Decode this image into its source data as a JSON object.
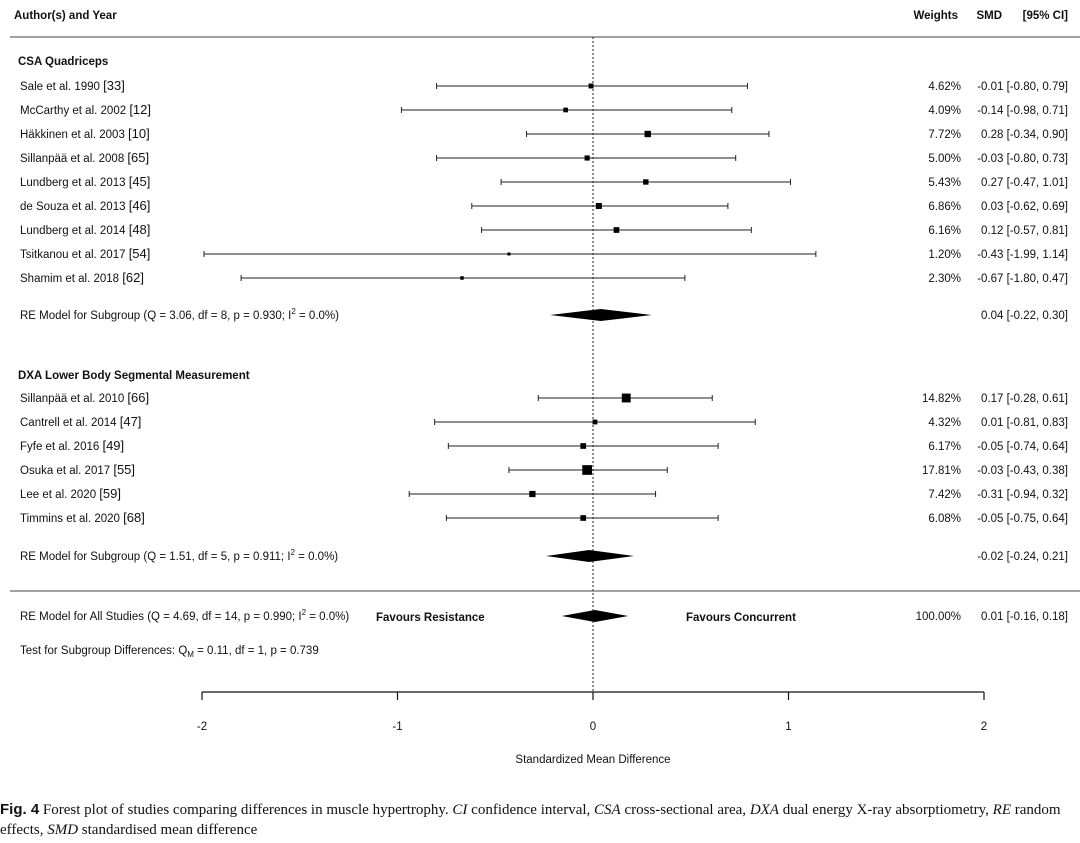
{
  "chart_data": {
    "type": "forest",
    "header": {
      "study": "Author(s) and Year",
      "weights": "Weights",
      "smd": "SMD",
      "ci": "[95% CI]"
    },
    "xlim": [
      -2,
      2
    ],
    "xticks": [
      "-2",
      "-1",
      "0",
      "1",
      "2"
    ],
    "xlabel": "Standardized Mean Difference",
    "favours_left": "Favours Resistance",
    "favours_right": "Favours Concurrent",
    "subgroups": [
      {
        "title": "CSA Quadriceps",
        "studies": [
          {
            "name": "Sale et al. 1990",
            "ref": "[33]",
            "smd": -0.01,
            "lo": -0.8,
            "hi": 0.79,
            "weight": "4.62%",
            "ci_text": "-0.01 [-0.80, 0.79]"
          },
          {
            "name": "McCarthy et al. 2002",
            "ref": "[12]",
            "smd": -0.14,
            "lo": -0.98,
            "hi": 0.71,
            "weight": "4.09%",
            "ci_text": "-0.14 [-0.98, 0.71]"
          },
          {
            "name": "Häkkinen et al. 2003",
            "ref": "[10]",
            "smd": 0.28,
            "lo": -0.34,
            "hi": 0.9,
            "weight": "7.72%",
            "ci_text": "0.28 [-0.34, 0.90]"
          },
          {
            "name": "Sillanpää et al. 2008",
            "ref": "[65]",
            "smd": -0.03,
            "lo": -0.8,
            "hi": 0.73,
            "weight": "5.00%",
            "ci_text": "-0.03 [-0.80, 0.73]"
          },
          {
            "name": "Lundberg et al. 2013",
            "ref": "[45]",
            "smd": 0.27,
            "lo": -0.47,
            "hi": 1.01,
            "weight": "5.43%",
            "ci_text": "0.27 [-0.47, 1.01]"
          },
          {
            "name": "de Souza et al. 2013",
            "ref": "[46]",
            "smd": 0.03,
            "lo": -0.62,
            "hi": 0.69,
            "weight": "6.86%",
            "ci_text": "0.03 [-0.62, 0.69]"
          },
          {
            "name": "Lundberg et al. 2014",
            "ref": "[48]",
            "smd": 0.12,
            "lo": -0.57,
            "hi": 0.81,
            "weight": "6.16%",
            "ci_text": "0.12 [-0.57, 0.81]"
          },
          {
            "name": "Tsitkanou et al. 2017",
            "ref": "[54]",
            "smd": -0.43,
            "lo": -1.99,
            "hi": 1.14,
            "weight": "1.20%",
            "ci_text": "-0.43 [-1.99, 1.14]"
          },
          {
            "name": "Shamim et al. 2018",
            "ref": "[62]",
            "smd": -0.67,
            "lo": -1.8,
            "hi": 0.47,
            "weight": "2.30%",
            "ci_text": "-0.67 [-1.80, 0.47]"
          }
        ],
        "model": {
          "label_pre": "RE Model for Subgroup (Q = 3.06, df = 8, p = 0.930; I",
          "label_sup": "2",
          "label_post": " = 0.0%)",
          "smd": 0.04,
          "lo": -0.22,
          "hi": 0.3,
          "ci_text": "0.04 [-0.22, 0.30]"
        }
      },
      {
        "title": "DXA Lower Body Segmental Measurement",
        "studies": [
          {
            "name": "Sillanpää et al. 2010",
            "ref": "[66]",
            "smd": 0.17,
            "lo": -0.28,
            "hi": 0.61,
            "weight": "14.82%",
            "ci_text": "0.17 [-0.28, 0.61]"
          },
          {
            "name": "Cantrell et al. 2014",
            "ref": "[47]",
            "smd": 0.01,
            "lo": -0.81,
            "hi": 0.83,
            "weight": "4.32%",
            "ci_text": "0.01 [-0.81, 0.83]"
          },
          {
            "name": "Fyfe et al. 2016",
            "ref": "[49]",
            "smd": -0.05,
            "lo": -0.74,
            "hi": 0.64,
            "weight": "6.17%",
            "ci_text": "-0.05 [-0.74, 0.64]"
          },
          {
            "name": "Osuka et al. 2017",
            "ref": "[55]",
            "smd": -0.03,
            "lo": -0.43,
            "hi": 0.38,
            "weight": "17.81%",
            "ci_text": "-0.03 [-0.43, 0.38]"
          },
          {
            "name": "Lee et al. 2020",
            "ref": "[59]",
            "smd": -0.31,
            "lo": -0.94,
            "hi": 0.32,
            "weight": "7.42%",
            "ci_text": "-0.31 [-0.94, 0.32]"
          },
          {
            "name": "Timmins et al. 2020",
            "ref": "[68]",
            "smd": -0.05,
            "lo": -0.75,
            "hi": 0.64,
            "weight": "6.08%",
            "ci_text": "-0.05 [-0.75, 0.64]"
          }
        ],
        "model": {
          "label_pre": "RE Model for Subgroup (Q = 1.51, df = 5, p = 0.911; I",
          "label_sup": "2",
          "label_post": " = 0.0%)",
          "smd": -0.02,
          "lo": -0.24,
          "hi": 0.21,
          "ci_text": "-0.02 [-0.24, 0.21]"
        }
      }
    ],
    "overall": {
      "label_pre": "RE Model for All Studies (Q = 4.69, df = 14, p = 0.990; I",
      "label_sup": "2",
      "label_post": " = 0.0%)",
      "smd": 0.01,
      "lo": -0.16,
      "hi": 0.18,
      "weight": "100.00%",
      "ci_text": "0.01 [-0.16, 0.18]"
    },
    "subgroup_test": {
      "label_pre": "Test for Subgroup Differences: Q",
      "label_sub": "M",
      "label_post": " = 0.11, df = 1, p = 0.739"
    }
  },
  "caption": {
    "fig_label": "Fig. 4",
    "text_before": "  Forest plot of studies comparing differences in muscle hypertrophy. ",
    "abbr": [
      {
        "term": "CI",
        "def": " confidence interval, "
      },
      {
        "term": "CSA",
        "def": " cross-sectional area, "
      },
      {
        "term": "DXA",
        "def": " dual energy X-ray absorptiometry, "
      },
      {
        "term": "RE",
        "def": " random effects, "
      },
      {
        "term": "SMD",
        "def": " standardised mean difference"
      }
    ]
  }
}
